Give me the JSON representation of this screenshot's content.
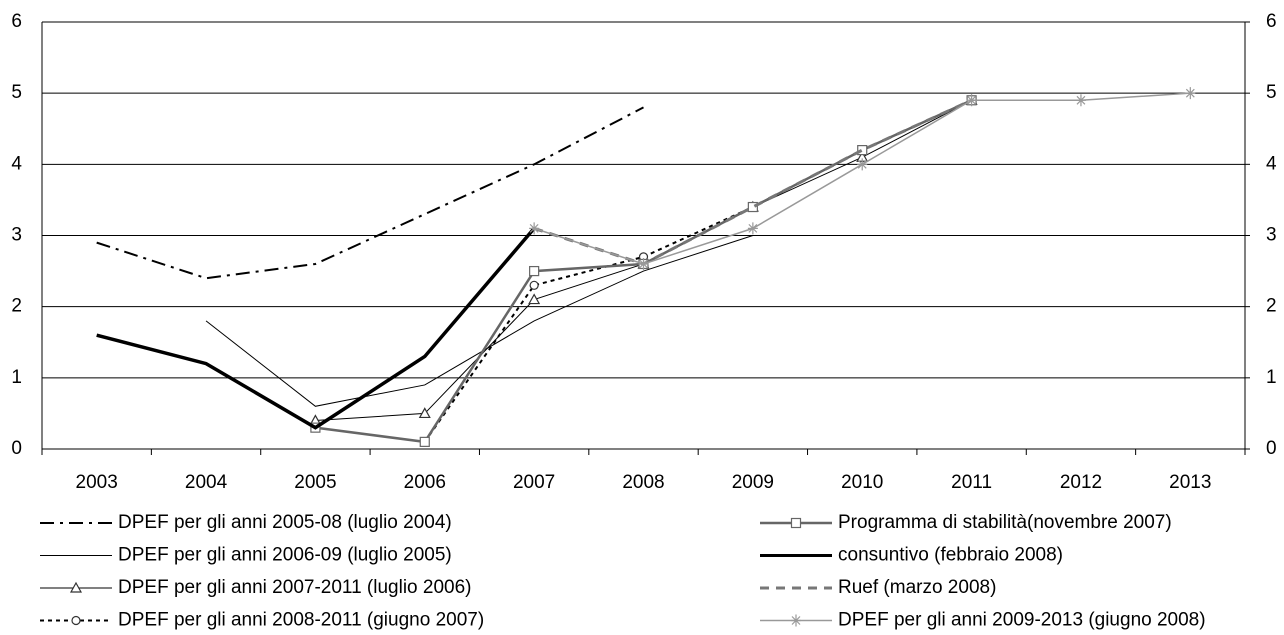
{
  "chart_data": {
    "type": "line",
    "categories": [
      "2003",
      "2004",
      "2005",
      "2006",
      "2007",
      "2008",
      "2009",
      "2010",
      "2011",
      "2012",
      "2013"
    ],
    "ylim": [
      0,
      6
    ],
    "yticks": [
      0,
      1,
      2,
      3,
      4,
      5,
      6
    ],
    "y2lim": [
      0,
      6
    ],
    "y2ticks": [
      0,
      1,
      2,
      3,
      4,
      5,
      6
    ],
    "grid": true,
    "series": [
      {
        "name": "DPEF per gli anni 2005-08 (luglio 2004)",
        "color": "#000000",
        "dash": "14 6 3 6",
        "width": 2,
        "marker": "none",
        "values": [
          2.9,
          2.4,
          2.6,
          3.3,
          4.0,
          4.8,
          null,
          null,
          null,
          null,
          null
        ]
      },
      {
        "name": "DPEF per gli anni 2006-09 (luglio 2005)",
        "color": "#000000",
        "dash": "none",
        "width": 1,
        "marker": "none",
        "values": [
          null,
          1.8,
          0.6,
          0.9,
          1.8,
          2.5,
          3.0,
          null,
          null,
          null,
          null
        ]
      },
      {
        "name": "DPEF per gli anni 2007-2011 (luglio 2006)",
        "color": "#000000",
        "dash": "none",
        "width": 1,
        "marker": "triangle",
        "values": [
          null,
          null,
          0.4,
          0.5,
          2.1,
          2.6,
          3.4,
          4.1,
          4.9,
          null,
          null
        ]
      },
      {
        "name": "DPEF per gli anni 2008-2011 (giugno 2007)",
        "color": "#000000",
        "dash": "4 4",
        "width": 2,
        "marker": "circle",
        "values": [
          null,
          null,
          null,
          0.1,
          2.3,
          2.7,
          3.4,
          4.2,
          4.9,
          null,
          null
        ]
      },
      {
        "name": "Programma di stabilità(novembre 2007)",
        "color": "#666666",
        "dash": "none",
        "width": 2.5,
        "marker": "square",
        "values": [
          null,
          null,
          0.3,
          0.1,
          2.5,
          2.6,
          3.4,
          4.2,
          4.9,
          null,
          null
        ]
      },
      {
        "name": "consuntivo (febbraio 2008)",
        "color": "#000000",
        "dash": "none",
        "width": 3.5,
        "marker": "none",
        "values": [
          1.6,
          1.2,
          0.3,
          1.3,
          3.1,
          null,
          null,
          null,
          null,
          null,
          null
        ]
      },
      {
        "name": "Ruef (marzo 2008)",
        "color": "#777777",
        "dash": "9 7",
        "width": 3,
        "marker": "none",
        "values": [
          null,
          null,
          null,
          null,
          3.1,
          2.6,
          3.4,
          4.2,
          4.9,
          null,
          null
        ]
      },
      {
        "name": "DPEF per gli anni 2009-2013 (giugno 2008)",
        "color": "#999999",
        "dash": "none",
        "width": 1.5,
        "marker": "star",
        "values": [
          null,
          null,
          null,
          null,
          3.1,
          2.6,
          3.1,
          4.0,
          4.9,
          4.9,
          5.0
        ]
      }
    ]
  }
}
